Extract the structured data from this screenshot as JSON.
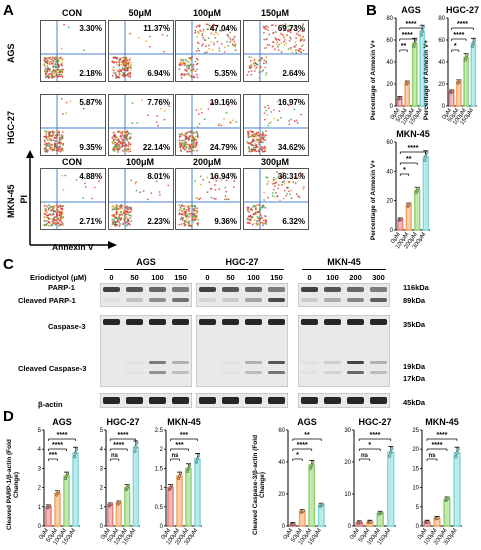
{
  "panel_a": {
    "letter": "A",
    "col_headers": [
      "CON",
      "50μM",
      "100μM",
      "150μM"
    ],
    "mkn_col_headers": [
      "CON",
      "100μM",
      "200μM",
      "300μM"
    ],
    "row_labels": [
      "AGS",
      "HGC-27",
      "MKN-45"
    ],
    "rows": [
      {
        "name": "AGS",
        "cells": [
          [
            "3.30%",
            "2.18%"
          ],
          [
            "11.37%",
            "6.94%"
          ],
          [
            "47.04%",
            "5.35%"
          ],
          [
            "69.73%",
            "2.64%"
          ]
        ]
      },
      {
        "name": "HGC-27",
        "cells": [
          [
            "5.87%",
            "9.35%"
          ],
          [
            "7.76%",
            "22.14%"
          ],
          [
            "19.16%",
            "24.79%"
          ],
          [
            "16.97%",
            "34.62%"
          ]
        ]
      },
      {
        "name": "MKN-45",
        "cells": [
          [
            "4.88%",
            "2.71%"
          ],
          [
            "8.01%",
            "2.23%"
          ],
          [
            "16.94%",
            "9.36%"
          ],
          [
            "36.31%",
            "6.32%"
          ]
        ]
      }
    ],
    "axis_y": "PI",
    "axis_x": "Annexin V"
  },
  "panel_b": {
    "letter": "B",
    "ylabel": "Percentage of Annexin V+",
    "sig": "****"
  },
  "panel_c": {
    "letter": "C",
    "treatment_label": "Eriodictyol (μM)",
    "groups": [
      {
        "name": "AGS",
        "doses": [
          "0",
          "50",
          "100",
          "150"
        ]
      },
      {
        "name": "HGC-27",
        "doses": [
          "0",
          "50",
          "100",
          "150"
        ]
      },
      {
        "name": "MKN-45",
        "doses": [
          "0",
          "100",
          "200",
          "300"
        ]
      }
    ],
    "left_labels": [
      "PARP-1",
      "Cleaved PARP-1",
      "Caspase-3",
      "Cleaved Caspase-3",
      "β-actin"
    ],
    "right_labels": [
      "116kDa",
      "89kDa",
      "35kDa",
      "19kDa",
      "17kDa",
      "45kDa"
    ]
  },
  "panel_d": {
    "letter": "D",
    "ylabel_left": "Cleaved PARP-1/β-actin (Fold Change)",
    "ylabel_right": "Cleaved Caspase-3/β-actin (Fold Change)",
    "ns": "ns"
  },
  "chart_data": [
    {
      "type": "bar",
      "title": "AGS",
      "ylabel": "Percentage of Annexin V+",
      "categories": [
        "0μM",
        "50μM",
        "100μM",
        "150μM"
      ],
      "values": [
        7,
        21,
        57,
        68
      ],
      "ylim": [
        0,
        80
      ],
      "colors": [
        "#e87b7b",
        "#f4a460",
        "#8fd16f",
        "#7fd8d8"
      ]
    },
    {
      "type": "bar",
      "title": "HGC-27",
      "ylabel": "Percentage of Annexin V+",
      "categories": [
        "0μM",
        "50μM",
        "100μM",
        "150μM"
      ],
      "values": [
        13,
        22,
        44,
        57
      ],
      "ylim": [
        0,
        80
      ],
      "colors": [
        "#e87b7b",
        "#f4a460",
        "#8fd16f",
        "#7fd8d8"
      ]
    },
    {
      "type": "bar",
      "title": "MKN-45",
      "ylabel": "Percentage of Annexin V+",
      "categories": [
        "0μM",
        "100μM",
        "200μM",
        "300μM"
      ],
      "values": [
        7,
        17,
        27,
        50
      ],
      "ylim": [
        0,
        60
      ],
      "colors": [
        "#e87b7b",
        "#f4a460",
        "#8fd16f",
        "#7fd8d8"
      ]
    },
    {
      "type": "bar",
      "title": "AGS",
      "ylabel": "Cleaved PARP-1/β-actin (Fold Change)",
      "categories": [
        "0μM",
        "50μM",
        "100μM",
        "150μM"
      ],
      "values": [
        1.0,
        1.7,
        2.6,
        3.8
      ],
      "ylim": [
        0,
        5
      ],
      "colors": [
        "#e87b7b",
        "#f4a460",
        "#8fd16f",
        "#7fd8d8"
      ]
    },
    {
      "type": "bar",
      "title": "HGC-27",
      "categories": [
        "0μM",
        "50μM",
        "100μM",
        "150μM"
      ],
      "values": [
        1.1,
        1.2,
        2.0,
        4.1
      ],
      "ylim": [
        0,
        5
      ],
      "colors": [
        "#e87b7b",
        "#f4a460",
        "#8fd16f",
        "#7fd8d8"
      ]
    },
    {
      "type": "bar",
      "title": "MKN-45",
      "categories": [
        "0μM",
        "100μM",
        "200μM",
        "300μM"
      ],
      "values": [
        1.0,
        1.3,
        1.5,
        1.75
      ],
      "ylim": [
        0,
        2.5
      ],
      "colors": [
        "#e87b7b",
        "#f4a460",
        "#8fd16f",
        "#7fd8d8"
      ]
    },
    {
      "type": "bar",
      "title": "AGS",
      "ylabel": "Cleaved Caspase-3/β-actin (Fold Change)",
      "categories": [
        "0μM",
        "50μM",
        "100μM",
        "150μM"
      ],
      "values": [
        1,
        9,
        38,
        13
      ],
      "ylim": [
        0,
        60
      ],
      "colors": [
        "#e87b7b",
        "#f4a460",
        "#8fd16f",
        "#7fd8d8"
      ]
    },
    {
      "type": "bar",
      "title": "HGC-27",
      "categories": [
        "0μM",
        "50μM",
        "100μM",
        "150μM"
      ],
      "values": [
        1.0,
        1.2,
        4.0,
        23
      ],
      "ylim": [
        0,
        30
      ],
      "colors": [
        "#e87b7b",
        "#f4a460",
        "#8fd16f",
        "#7fd8d8"
      ]
    },
    {
      "type": "bar",
      "title": "MKN-45",
      "categories": [
        "0μM",
        "100μM",
        "200μM",
        "300μM"
      ],
      "values": [
        1.0,
        2.0,
        7.0,
        19
      ],
      "ylim": [
        0,
        25
      ],
      "colors": [
        "#e87b7b",
        "#f4a460",
        "#8fd16f",
        "#7fd8d8"
      ]
    }
  ]
}
